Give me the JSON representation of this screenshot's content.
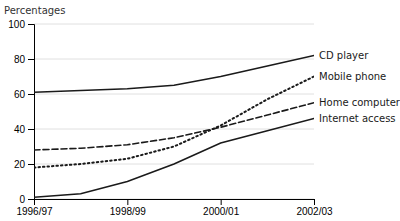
{
  "chart_data": {
    "type": "line",
    "y_label": "Percentages",
    "categories": [
      "1996/97",
      null,
      "1998/99",
      null,
      "2000/01",
      null,
      "2002/03"
    ],
    "ylim": [
      0,
      100
    ],
    "yticks": [
      0,
      20,
      40,
      60,
      80,
      100
    ],
    "grid": true,
    "series": [
      {
        "name": "CD player",
        "color": "#1a1a1a",
        "line_style": "solid",
        "values": [
          61,
          62,
          63,
          65,
          70,
          76,
          82
        ]
      },
      {
        "name": "Mobile phone",
        "color": "#1a1a1a",
        "line_style": "dotted",
        "values": [
          18,
          20,
          23,
          30,
          42,
          57,
          70
        ]
      },
      {
        "name": "Home computer",
        "color": "#1a1a1a",
        "line_style": "dashed",
        "values": [
          28,
          29,
          31,
          35,
          41,
          48,
          55
        ]
      },
      {
        "name": "Internet access",
        "color": "#1a1a1a",
        "line_style": "solid",
        "values": [
          1,
          3,
          10,
          20,
          32,
          39,
          46
        ]
      }
    ]
  }
}
